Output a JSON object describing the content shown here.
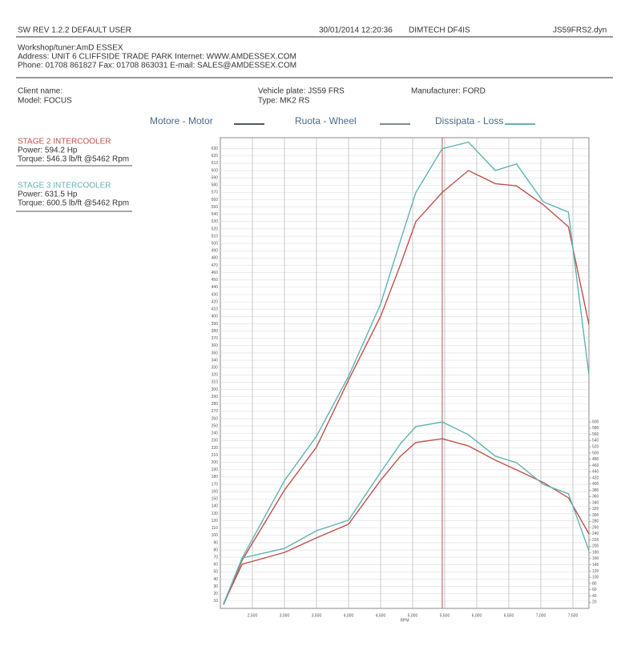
{
  "header": {
    "software": "SW REV 1.2.2   DEFAULT USER",
    "date": "30/01/2014 12:20:36",
    "device": "DIMTECH DF4IS",
    "file": "JS59FRS2.dyn",
    "workshop": "Workshop/tuner:AmD ESSEX",
    "address": "Address: UNIT 6 CLIFFSIDE TRADE PARK Internet: WWW.AMDESSEX.COM",
    "phone": "Phone: 01708 861827 Fax: 01708 863031 E-mail: SALES@AMDESSEX.COM"
  },
  "vehicle": {
    "client": "Client name:",
    "model": "Model: FOCUS",
    "plate": "Vehicle plate: JS59 FRS",
    "type": "Type: MK2 RS",
    "manufacturer": "Manufacturer: FORD"
  },
  "legend": [
    {
      "label": "Motore - Motor",
      "color": "#4a5a6a"
    },
    {
      "label": "Ruota - Wheel",
      "color": "#7d8b94"
    },
    {
      "label": "Dissipata - Loss",
      "color": "#5fb3b3"
    }
  ],
  "runs": [
    {
      "power": "Power: 594.2 Hp",
      "torque": "Torque: 546.3 lb/ft @5462 Rpm"
    },
    {
      "power": "Power: 631.5 Hp",
      "torque": "Torque: 600.5 lb/ft @5462 Rpm"
    }
  ],
  "chart_data": {
    "type": "line",
    "xlabel": "RPM",
    "grid": true,
    "cursor_rpm": 5462,
    "x": [
      2050,
      2340,
      3000,
      3500,
      4000,
      4500,
      4810,
      5050,
      5462,
      5870,
      6290,
      6620,
      7040,
      7430,
      7750
    ],
    "xlim": [
      2000,
      7750
    ],
    "xticks": [
      {
        "value": 2500,
        "label": "2,500"
      },
      {
        "value": 3000,
        "label": "3,000"
      },
      {
        "value": 3500,
        "label": "3,500"
      },
      {
        "value": 4000,
        "label": "4,000"
      },
      {
        "value": 4500,
        "label": "4,500"
      },
      {
        "value": 5000,
        "label": "5,000"
      },
      {
        "value": 5500,
        "label": "5,500"
      },
      {
        "value": 6000,
        "label": "6,000"
      },
      {
        "value": 6500,
        "label": "6,500"
      },
      {
        "value": 7000,
        "label": "7,000"
      },
      {
        "value": 7500,
        "label": "7,500"
      }
    ],
    "ylim": [
      0,
      645
    ],
    "yticks": [
      10,
      20,
      30,
      40,
      50,
      60,
      70,
      80,
      90,
      100,
      110,
      120,
      130,
      140,
      150,
      160,
      170,
      180,
      190,
      200,
      210,
      220,
      230,
      240,
      250,
      260,
      270,
      280,
      290,
      300,
      310,
      320,
      330,
      340,
      350,
      360,
      370,
      380,
      390,
      400,
      410,
      420,
      430,
      440,
      450,
      460,
      470,
      480,
      490,
      500,
      510,
      520,
      530,
      540,
      550,
      560,
      570,
      580,
      590,
      600,
      610,
      620,
      630
    ],
    "y2lim": [
      0,
      1515
    ],
    "y2ticks": [
      20,
      40,
      60,
      80,
      100,
      120,
      140,
      160,
      180,
      200,
      220,
      240,
      260,
      280,
      300,
      320,
      340,
      360,
      380,
      400,
      420,
      440,
      460,
      480,
      500,
      520,
      540,
      560,
      580,
      600
    ],
    "series": [
      {
        "name": "STAGE 2 INTERCOOLER",
        "color": "#c0504d",
        "values": [
          5,
          66,
          162,
          221,
          313,
          400,
          471,
          530,
          570,
          600,
          582,
          579,
          553,
          523,
          389
        ]
      },
      {
        "name": "STAGE 3 INTERCOOLER",
        "color": "#5fb3b3",
        "values": [
          5,
          69,
          175,
          236,
          318,
          417,
          504,
          570,
          630,
          639,
          600,
          609,
          557,
          543,
          320
        ]
      },
      {
        "color": "#c0504d",
        "axis": "y2",
        "values": [
          15,
          142,
          180,
          227,
          271,
          412,
          490,
          534,
          546,
          523,
          477,
          446,
          405,
          356,
          240
        ]
      },
      {
        "color": "#5fb3b3",
        "axis": "y2",
        "values": [
          15,
          162,
          193,
          250,
          284,
          438,
          530,
          585,
          600,
          559,
          490,
          469,
          399,
          369,
          186
        ]
      }
    ]
  }
}
